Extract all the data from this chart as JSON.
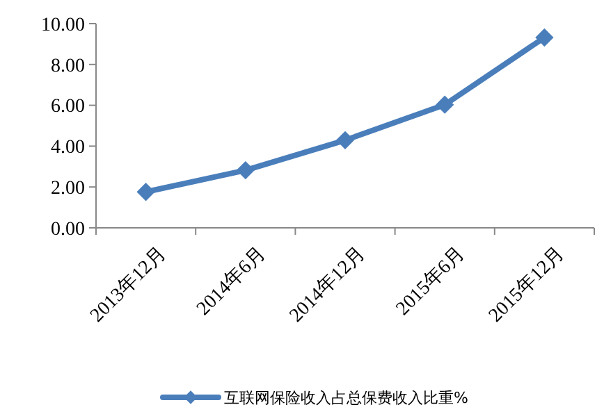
{
  "chart_data": {
    "type": "line",
    "categories": [
      "2013年12月",
      "2014年6月",
      "2014年12月",
      "2015年6月",
      "2015年12月"
    ],
    "series": [
      {
        "name": "互联网保险收入占总保费收入比重%",
        "color": "#4a7ebb",
        "values": [
          1.76,
          2.82,
          4.29,
          6.03,
          9.32
        ]
      }
    ],
    "ylim": [
      0,
      10
    ],
    "yticks": [
      {
        "value": 0,
        "label": "0.00"
      },
      {
        "value": 2,
        "label": "2.00"
      },
      {
        "value": 4,
        "label": "4.00"
      },
      {
        "value": 6,
        "label": "6.00"
      },
      {
        "value": 8,
        "label": "8.00"
      },
      {
        "value": 10,
        "label": "10.00"
      }
    ],
    "grid": false,
    "legend": "bottom",
    "marker": "diamond",
    "line_style": "solid"
  }
}
